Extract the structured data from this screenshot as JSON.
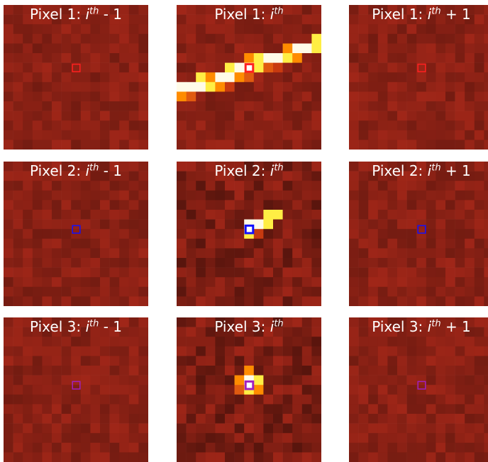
{
  "panels": [
    {
      "title": {
        "prefix": "Pixel 1:",
        "var": "i",
        "sup": "th",
        "suffix": "- 1"
      },
      "marker": "#ff2020"
    },
    {
      "title": {
        "prefix": "Pixel 1:",
        "var": "i",
        "sup": "th"
      },
      "marker": "#ff2020"
    },
    {
      "title": {
        "prefix": "Pixel 1:",
        "var": "i",
        "sup": "th",
        "suffix": "+ 1"
      },
      "marker": "#ff2020"
    },
    {
      "title": {
        "prefix": "Pixel 2:",
        "var": "i",
        "sup": "th",
        "suffix": "- 1"
      },
      "marker": "#1010ff"
    },
    {
      "title": {
        "prefix": "Pixel 2:",
        "var": "i",
        "sup": "th"
      },
      "marker": "#1010ff"
    },
    {
      "title": {
        "prefix": "Pixel 2:",
        "var": "i",
        "sup": "th",
        "suffix": "+ 1"
      },
      "marker": "#1010ff"
    },
    {
      "title": {
        "prefix": "Pixel 3:",
        "var": "i",
        "sup": "th",
        "suffix": "- 1"
      },
      "marker": "#a020c0"
    },
    {
      "title": {
        "prefix": "Pixel 3:",
        "var": "i",
        "sup": "th"
      },
      "marker": "#a020c0"
    },
    {
      "title": {
        "prefix": "Pixel 3:",
        "var": "i",
        "sup": "th",
        "suffix": "+ 1"
      },
      "marker": "#a020c0"
    }
  ]
}
